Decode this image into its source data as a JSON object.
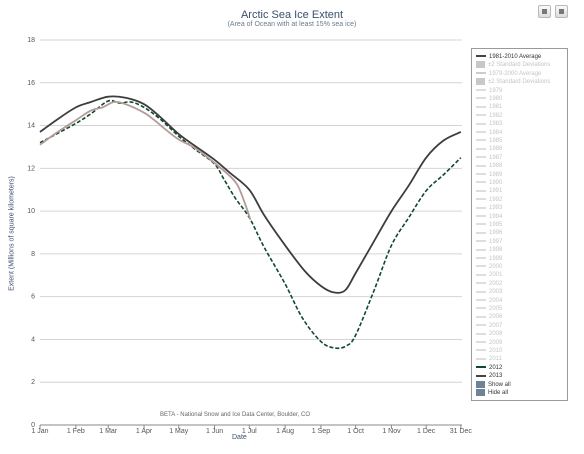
{
  "chart_data": {
    "type": "line",
    "title": "Arctic Sea Ice Extent",
    "subtitle": "(Area of Ocean with at least 15% sea ice)",
    "ylabel": "Extent (Millions of square kilometers)",
    "xlabel": "Date",
    "footer": "BETA - National Snow and Ice Data Center, Boulder, CO",
    "ylim": [
      0,
      18
    ],
    "yticks": [
      0,
      2,
      4,
      6,
      8,
      10,
      12,
      14,
      16,
      18
    ],
    "xlim": [
      1,
      366
    ],
    "xticks": [
      {
        "label": "1 Jan",
        "day": 1
      },
      {
        "label": "1 Feb",
        "day": 32
      },
      {
        "label": "1 Mar",
        "day": 60
      },
      {
        "label": "1 Apr",
        "day": 91
      },
      {
        "label": "1 May",
        "day": 121
      },
      {
        "label": "1 Jun",
        "day": 152
      },
      {
        "label": "1 Jul",
        "day": 182
      },
      {
        "label": "1 Aug",
        "day": 213
      },
      {
        "label": "1 Sep",
        "day": 244
      },
      {
        "label": "1 Oct",
        "day": 274
      },
      {
        "label": "1 Nov",
        "day": 305
      },
      {
        "label": "1 Dec",
        "day": 335
      },
      {
        "label": "31 Dec",
        "day": 365
      }
    ],
    "grid": true,
    "legend_position": "right",
    "series": [
      {
        "name": "1981-2010 Average",
        "color": "#3d3d3d",
        "style": "solid",
        "points": [
          [
            1,
            13.7
          ],
          [
            15,
            14.25
          ],
          [
            32,
            14.85
          ],
          [
            45,
            15.1
          ],
          [
            60,
            15.35
          ],
          [
            75,
            15.3
          ],
          [
            91,
            15.0
          ],
          [
            105,
            14.4
          ],
          [
            121,
            13.6
          ],
          [
            135,
            13.05
          ],
          [
            152,
            12.4
          ],
          [
            165,
            11.8
          ],
          [
            182,
            11.0
          ],
          [
            195,
            9.8
          ],
          [
            213,
            8.4
          ],
          [
            230,
            7.2
          ],
          [
            244,
            6.5
          ],
          [
            255,
            6.2
          ],
          [
            265,
            6.3
          ],
          [
            274,
            7.1
          ],
          [
            290,
            8.6
          ],
          [
            305,
            10.0
          ],
          [
            320,
            11.2
          ],
          [
            335,
            12.5
          ],
          [
            350,
            13.3
          ],
          [
            365,
            13.7
          ]
        ]
      },
      {
        "name": "2012",
        "color": "#0e4a2c",
        "style": "dashed",
        "points": [
          [
            1,
            13.2
          ],
          [
            15,
            13.6
          ],
          [
            32,
            14.1
          ],
          [
            45,
            14.55
          ],
          [
            60,
            15.15
          ],
          [
            70,
            15.05
          ],
          [
            80,
            15.1
          ],
          [
            91,
            14.85
          ],
          [
            105,
            14.3
          ],
          [
            121,
            13.5
          ],
          [
            135,
            12.9
          ],
          [
            152,
            12.2
          ],
          [
            160,
            11.5
          ],
          [
            170,
            10.6
          ],
          [
            182,
            9.7
          ],
          [
            195,
            8.3
          ],
          [
            213,
            6.6
          ],
          [
            228,
            5.0
          ],
          [
            244,
            3.9
          ],
          [
            256,
            3.6
          ],
          [
            266,
            3.7
          ],
          [
            274,
            4.2
          ],
          [
            290,
            6.3
          ],
          [
            305,
            8.4
          ],
          [
            320,
            9.7
          ],
          [
            335,
            10.95
          ],
          [
            350,
            11.7
          ],
          [
            365,
            12.5
          ]
        ]
      },
      {
        "name": "2013",
        "color": "#b59a9a",
        "style": "solid",
        "points": [
          [
            1,
            13.1
          ],
          [
            15,
            13.65
          ],
          [
            32,
            14.25
          ],
          [
            45,
            14.7
          ],
          [
            55,
            14.85
          ],
          [
            65,
            15.1
          ],
          [
            75,
            15.0
          ],
          [
            91,
            14.6
          ],
          [
            100,
            14.25
          ],
          [
            110,
            13.8
          ],
          [
            121,
            13.35
          ],
          [
            135,
            12.95
          ],
          [
            152,
            12.25
          ],
          [
            165,
            11.65
          ],
          [
            172,
            11.2
          ],
          [
            178,
            10.4
          ],
          [
            183,
            9.6
          ]
        ]
      }
    ]
  },
  "legend": {
    "items": [
      {
        "label": "1981-2010 Average",
        "kind": "line",
        "style": "solid",
        "color": "#444444"
      },
      {
        "label": "±2 Standard Deviations",
        "kind": "box",
        "color": "#c8c8c8",
        "faded": true
      },
      {
        "label": "1979-2000 Average",
        "kind": "line",
        "style": "solid",
        "color": "#cccccc",
        "faded": true
      },
      {
        "label": "±2 Standard Deviations",
        "kind": "box",
        "color": "#c8c8c8",
        "faded": true
      },
      {
        "label": "1979",
        "kind": "line",
        "style": "solid",
        "color": "#dddddd",
        "faded": true
      },
      {
        "label": "1980",
        "kind": "line",
        "style": "solid",
        "color": "#dddddd",
        "faded": true
      },
      {
        "label": "1981",
        "kind": "line",
        "style": "solid",
        "color": "#dddddd",
        "faded": true
      },
      {
        "label": "1982",
        "kind": "line",
        "style": "solid",
        "color": "#dddddd",
        "faded": true
      },
      {
        "label": "1983",
        "kind": "line",
        "style": "solid",
        "color": "#dddddd",
        "faded": true
      },
      {
        "label": "1984",
        "kind": "line",
        "style": "solid",
        "color": "#dddddd",
        "faded": true
      },
      {
        "label": "1985",
        "kind": "line",
        "style": "solid",
        "color": "#dddddd",
        "faded": true
      },
      {
        "label": "1986",
        "kind": "line",
        "style": "solid",
        "color": "#dddddd",
        "faded": true
      },
      {
        "label": "1987",
        "kind": "line",
        "style": "solid",
        "color": "#dddddd",
        "faded": true
      },
      {
        "label": "1988",
        "kind": "line",
        "style": "solid",
        "color": "#dddddd",
        "faded": true
      },
      {
        "label": "1989",
        "kind": "line",
        "style": "solid",
        "color": "#dddddd",
        "faded": true
      },
      {
        "label": "1990",
        "kind": "line",
        "style": "solid",
        "color": "#dddddd",
        "faded": true
      },
      {
        "label": "1991",
        "kind": "line",
        "style": "solid",
        "color": "#dddddd",
        "faded": true
      },
      {
        "label": "1992",
        "kind": "line",
        "style": "solid",
        "color": "#dddddd",
        "faded": true
      },
      {
        "label": "1993",
        "kind": "line",
        "style": "solid",
        "color": "#dddddd",
        "faded": true
      },
      {
        "label": "1994",
        "kind": "line",
        "style": "solid",
        "color": "#dddddd",
        "faded": true
      },
      {
        "label": "1995",
        "kind": "line",
        "style": "solid",
        "color": "#dddddd",
        "faded": true
      },
      {
        "label": "1996",
        "kind": "line",
        "style": "solid",
        "color": "#dddddd",
        "faded": true
      },
      {
        "label": "1997",
        "kind": "line",
        "style": "solid",
        "color": "#dddddd",
        "faded": true
      },
      {
        "label": "1998",
        "kind": "line",
        "style": "solid",
        "color": "#dddddd",
        "faded": true
      },
      {
        "label": "1999",
        "kind": "line",
        "style": "solid",
        "color": "#dddddd",
        "faded": true
      },
      {
        "label": "2000",
        "kind": "line",
        "style": "solid",
        "color": "#dddddd",
        "faded": true
      },
      {
        "label": "2001",
        "kind": "line",
        "style": "solid",
        "color": "#dddddd",
        "faded": true
      },
      {
        "label": "2002",
        "kind": "line",
        "style": "solid",
        "color": "#dddddd",
        "faded": true
      },
      {
        "label": "2003",
        "kind": "line",
        "style": "solid",
        "color": "#dddddd",
        "faded": true
      },
      {
        "label": "2004",
        "kind": "line",
        "style": "solid",
        "color": "#dddddd",
        "faded": true
      },
      {
        "label": "2005",
        "kind": "line",
        "style": "solid",
        "color": "#dddddd",
        "faded": true
      },
      {
        "label": "2006",
        "kind": "line",
        "style": "solid",
        "color": "#dddddd",
        "faded": true
      },
      {
        "label": "2007",
        "kind": "line",
        "style": "solid",
        "color": "#dddddd",
        "faded": true
      },
      {
        "label": "2008",
        "kind": "line",
        "style": "solid",
        "color": "#dddddd",
        "faded": true
      },
      {
        "label": "2009",
        "kind": "line",
        "style": "solid",
        "color": "#dddddd",
        "faded": true
      },
      {
        "label": "2010",
        "kind": "line",
        "style": "solid",
        "color": "#dddddd",
        "faded": true
      },
      {
        "label": "2011",
        "kind": "line",
        "style": "solid",
        "color": "#dddddd",
        "faded": true
      },
      {
        "label": "2012",
        "kind": "line",
        "style": "dashed",
        "color": "#0e4a2c"
      },
      {
        "label": "2013",
        "kind": "line",
        "style": "solid",
        "color": "#444444"
      },
      {
        "label": "Show all",
        "kind": "button",
        "color": "#6f8397"
      },
      {
        "label": "Hide all",
        "kind": "button",
        "color": "#6f8397"
      }
    ]
  },
  "toolbar": {
    "buttons": [
      {
        "icon": "print-icon"
      },
      {
        "icon": "export-icon"
      }
    ]
  }
}
